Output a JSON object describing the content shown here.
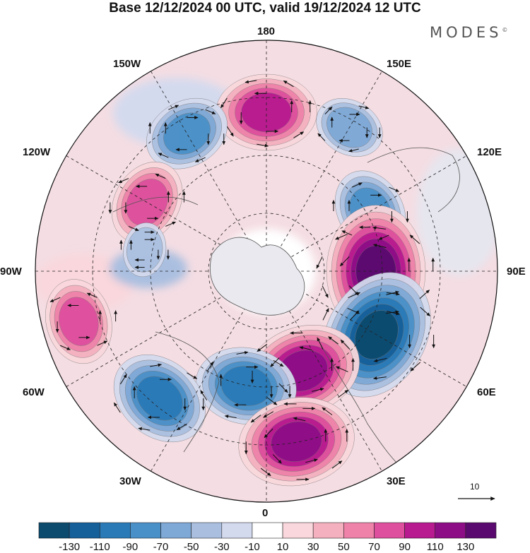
{
  "header": {
    "title": "Base 12/12/2024 00 UTC, valid 19/12/2024 12 UTC",
    "brand": "MODES",
    "brand_mark": "©"
  },
  "map": {
    "projection": "north-polar-stereographic",
    "longitude_labels": {
      "top": "180",
      "bottom": "0",
      "left": "90W",
      "right": "90E",
      "upper_left_1": "150W",
      "upper_left_2": "120W",
      "upper_right_1": "150E",
      "upper_right_2": "120E",
      "lower_left_1": "60W",
      "lower_left_2": "30W",
      "lower_right_1": "60E",
      "lower_right_2": "30E"
    },
    "anomaly_centers": [
      {
        "sign": "positive",
        "value": 90,
        "longitude": "180"
      },
      {
        "sign": "negative",
        "value": -70,
        "longitude": "150W"
      },
      {
        "sign": "positive",
        "value": 70,
        "longitude": "120W"
      },
      {
        "sign": "negative",
        "value": -50,
        "longitude": "150E"
      },
      {
        "sign": "negative",
        "value": -70,
        "longitude": "120E"
      },
      {
        "sign": "positive",
        "value": 130,
        "longitude": "90E"
      },
      {
        "sign": "negative",
        "value": -130,
        "longitude": "60E"
      },
      {
        "sign": "positive",
        "value": 110,
        "longitude": "20E"
      },
      {
        "sign": "negative",
        "value": -90,
        "longitude": "10W"
      },
      {
        "sign": "positive",
        "value": 110,
        "longitude": "10E"
      },
      {
        "sign": "negative",
        "value": -90,
        "longitude": "40W"
      },
      {
        "sign": "positive",
        "value": 70,
        "longitude": "75W"
      },
      {
        "sign": "negative",
        "value": -30,
        "longitude": "100W"
      }
    ],
    "reference_vector_label": "10"
  },
  "colorbar": {
    "tick_labels": [
      "-130",
      "-110",
      "-90",
      "-70",
      "-50",
      "-30",
      "-10",
      "10",
      "30",
      "50",
      "70",
      "90",
      "110",
      "130"
    ],
    "colors": [
      "#0c4a6e",
      "#15609a",
      "#2a7ab8",
      "#4a90c8",
      "#7ea8d6",
      "#aabfe0",
      "#d4daee",
      "#ffffff",
      "#f9d7dc",
      "#f4b0be",
      "#ee82a8",
      "#de4f9d",
      "#b81a8f",
      "#8d0d86",
      "#5a0a6e"
    ]
  }
}
